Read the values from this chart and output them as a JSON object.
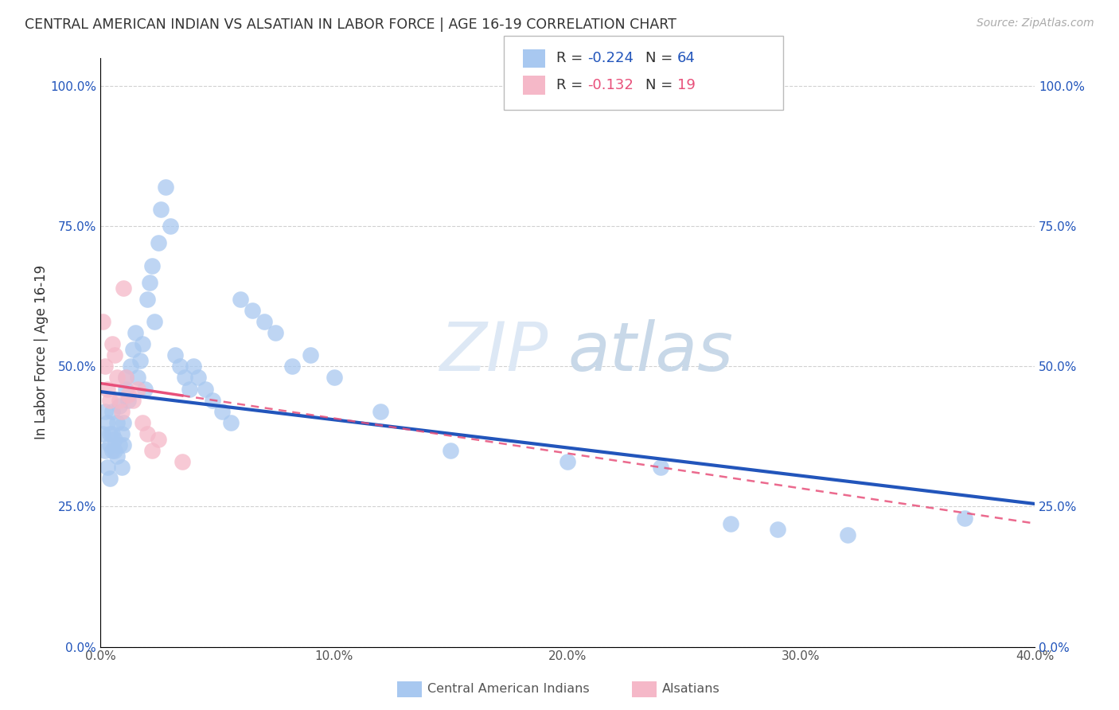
{
  "title": "CENTRAL AMERICAN INDIAN VS ALSATIAN IN LABOR FORCE | AGE 16-19 CORRELATION CHART",
  "source": "Source: ZipAtlas.com",
  "ylabel": "In Labor Force | Age 16-19",
  "xlim": [
    0.0,
    0.4
  ],
  "ylim": [
    0.0,
    1.05
  ],
  "yticks": [
    0.0,
    0.25,
    0.5,
    0.75,
    1.0
  ],
  "ytick_labels": [
    "0.0%",
    "25.0%",
    "50.0%",
    "75.0%",
    "100.0%"
  ],
  "xticks": [
    0.0,
    0.1,
    0.2,
    0.3,
    0.4
  ],
  "xtick_labels": [
    "0.0%",
    "10.0%",
    "20.0%",
    "30.0%",
    "40.0%"
  ],
  "blue_color": "#a8c8f0",
  "pink_color": "#f5b8c8",
  "blue_line_color": "#2255bb",
  "pink_line_color": "#e8507a",
  "watermark_zip": "ZIP",
  "watermark_atlas": "atlas",
  "blue_R": -0.224,
  "pink_R": -0.132,
  "blue_N": 64,
  "pink_N": 19,
  "blue_x": [
    0.001,
    0.002,
    0.002,
    0.003,
    0.003,
    0.004,
    0.004,
    0.004,
    0.005,
    0.005,
    0.005,
    0.006,
    0.006,
    0.007,
    0.007,
    0.008,
    0.008,
    0.009,
    0.009,
    0.01,
    0.01,
    0.011,
    0.011,
    0.012,
    0.013,
    0.014,
    0.015,
    0.016,
    0.017,
    0.018,
    0.019,
    0.02,
    0.021,
    0.022,
    0.023,
    0.025,
    0.026,
    0.028,
    0.03,
    0.032,
    0.034,
    0.036,
    0.038,
    0.04,
    0.042,
    0.045,
    0.048,
    0.052,
    0.056,
    0.06,
    0.065,
    0.07,
    0.075,
    0.082,
    0.09,
    0.1,
    0.12,
    0.15,
    0.2,
    0.24,
    0.27,
    0.29,
    0.32,
    0.37
  ],
  "blue_y": [
    0.38,
    0.35,
    0.42,
    0.32,
    0.4,
    0.36,
    0.38,
    0.3,
    0.35,
    0.38,
    0.42,
    0.35,
    0.37,
    0.34,
    0.4,
    0.36,
    0.43,
    0.38,
    0.32,
    0.4,
    0.36,
    0.46,
    0.48,
    0.44,
    0.5,
    0.53,
    0.56,
    0.48,
    0.51,
    0.54,
    0.46,
    0.62,
    0.65,
    0.68,
    0.58,
    0.72,
    0.78,
    0.82,
    0.75,
    0.52,
    0.5,
    0.48,
    0.46,
    0.5,
    0.48,
    0.46,
    0.44,
    0.42,
    0.4,
    0.62,
    0.6,
    0.58,
    0.56,
    0.5,
    0.52,
    0.48,
    0.42,
    0.35,
    0.33,
    0.32,
    0.22,
    0.21,
    0.2,
    0.23
  ],
  "pink_x": [
    0.001,
    0.002,
    0.003,
    0.004,
    0.005,
    0.006,
    0.007,
    0.008,
    0.009,
    0.01,
    0.011,
    0.012,
    0.014,
    0.016,
    0.018,
    0.02,
    0.022,
    0.025,
    0.035
  ],
  "pink_y": [
    0.58,
    0.5,
    0.46,
    0.44,
    0.54,
    0.52,
    0.48,
    0.44,
    0.42,
    0.64,
    0.48,
    0.45,
    0.44,
    0.46,
    0.4,
    0.38,
    0.35,
    0.37,
    0.33
  ],
  "background_color": "#ffffff",
  "grid_color": "#cccccc",
  "legend_blue_R": "-0.224",
  "legend_blue_N": "64",
  "legend_pink_R": "-0.132",
  "legend_pink_N": "19"
}
